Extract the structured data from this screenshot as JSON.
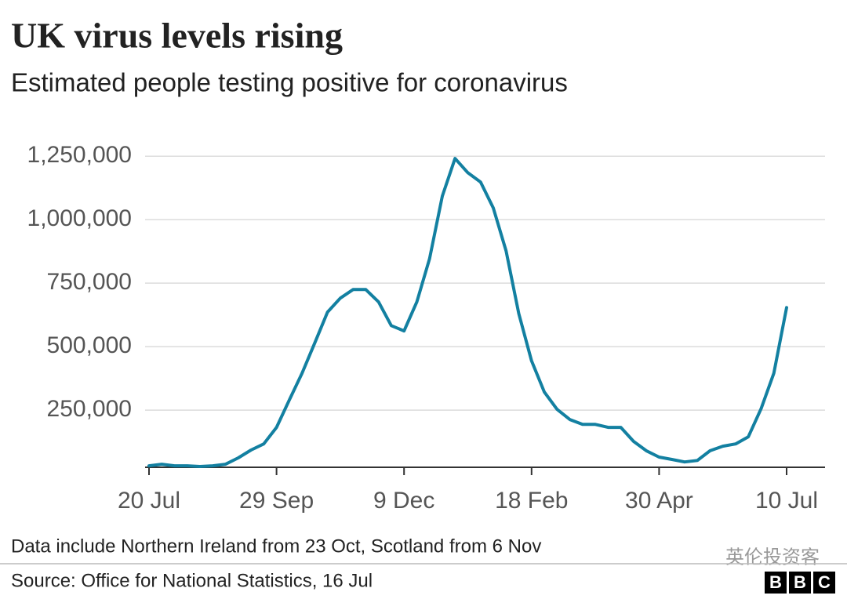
{
  "chart_data": {
    "type": "line",
    "title": "UK virus levels rising",
    "subtitle": "Estimated people testing positive for coronavirus",
    "categories": [
      "20 Jul",
      null,
      null,
      null,
      null,
      null,
      null,
      null,
      null,
      null,
      "29 Sep",
      null,
      null,
      null,
      null,
      null,
      null,
      null,
      null,
      null,
      "9 Dec",
      null,
      null,
      null,
      null,
      null,
      null,
      null,
      null,
      null,
      "18 Feb",
      null,
      null,
      null,
      null,
      null,
      null,
      null,
      null,
      null,
      "30 Apr",
      null,
      null,
      null,
      null,
      null,
      null,
      null,
      null,
      null,
      "10 Jul"
    ],
    "series": [
      {
        "color": "#1380a1",
        "values": [
          31000,
          37000,
          31000,
          31000,
          28000,
          31000,
          37000,
          62000,
          93000,
          117000,
          182000,
          290000,
          395000,
          515000,
          636000,
          691000,
          725000,
          725000,
          676000,
          583000,
          562000,
          676000,
          846000,
          1093000,
          1241000,
          1185000,
          1148000,
          1046000,
          877000,
          630000,
          444000,
          321000,
          253000,
          213000,
          194000,
          194000,
          182000,
          182000,
          127000,
          90000,
          65000,
          56000,
          46000,
          52000,
          90000,
          108000,
          117000,
          145000,
          256000,
          395000,
          654000
        ]
      }
    ],
    "ylim": [
      25000,
      1300000
    ],
    "yticks": [
      {
        "value": 250000,
        "label": "250,000"
      },
      {
        "value": 500000,
        "label": "500,000"
      },
      {
        "value": 750000,
        "label": "750,000"
      },
      {
        "value": 1000000,
        "label": "1,000,000"
      },
      {
        "value": 1250000,
        "label": "1,250,000"
      }
    ],
    "grid": true,
    "note": "Data include Northern Ireland from 23 Oct, Scotland from 6 Nov",
    "source": "Source: Office for National Statistics, 16 Jul",
    "watermark": "英伦投资客",
    "logo": [
      "B",
      "B",
      "C"
    ]
  }
}
